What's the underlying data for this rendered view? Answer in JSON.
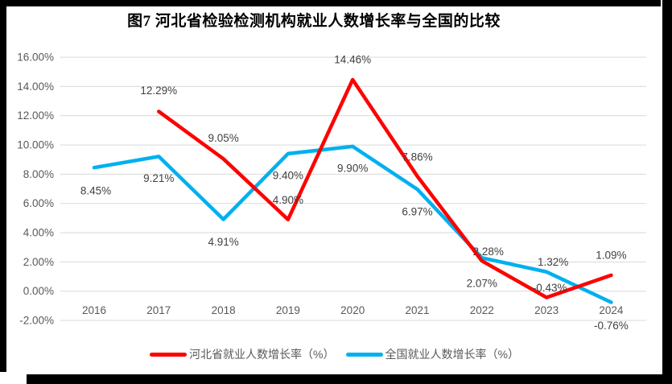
{
  "figure": {
    "title": "图7 河北省检验检测机构就业人数增长率与全国的比较"
  },
  "chart_data": {
    "type": "line",
    "title": "图7 河北省检验检测机构就业人数增长率与全国的比较",
    "categories": [
      "2016",
      "2017",
      "2018",
      "2019",
      "2020",
      "2021",
      "2022",
      "2023",
      "2024"
    ],
    "series": [
      {
        "name": "河北省就业人数增长率（%）",
        "color": "#FF0000",
        "values": [
          null,
          12.29,
          9.05,
          4.9,
          14.46,
          7.86,
          2.07,
          -0.43,
          1.09
        ],
        "labels": [
          "",
          "12.29%",
          "9.05%",
          "4.90%",
          "14.46%",
          "7.86%",
          "2.07%",
          "-0.43%",
          "1.09%"
        ],
        "label_offsets": [
          [
            0,
            0
          ],
          [
            0,
            -26
          ],
          [
            0,
            -26
          ],
          [
            0,
            -24
          ],
          [
            0,
            -25
          ],
          [
            0,
            -24
          ],
          [
            0,
            28
          ],
          [
            4,
            -12
          ],
          [
            0,
            -25
          ]
        ]
      },
      {
        "name": "全国就业人数增长率（%）",
        "color": "#00B0F0",
        "values": [
          8.45,
          9.21,
          4.91,
          9.4,
          9.9,
          6.97,
          2.28,
          1.32,
          -0.76
        ],
        "labels": [
          "8.45%",
          "9.21%",
          "4.91%",
          "9.40%",
          "9.90%",
          "6.97%",
          "2.28%",
          "1.32%",
          "-0.76%"
        ],
        "label_offsets": [
          [
            2,
            29
          ],
          [
            0,
            27
          ],
          [
            0,
            28
          ],
          [
            0,
            27
          ],
          [
            0,
            27
          ],
          [
            0,
            28
          ],
          [
            8,
            -8
          ],
          [
            8,
            -12
          ],
          [
            0,
            29
          ]
        ]
      }
    ],
    "y_ticks": [
      "16.00%",
      "14.00%",
      "12.00%",
      "10.00%",
      "8.00%",
      "6.00%",
      "4.00%",
      "2.00%",
      "0.00%",
      "-2.00%"
    ],
    "y_tick_values": [
      16,
      14,
      12,
      10,
      8,
      6,
      4,
      2,
      0,
      -2
    ],
    "ylim": [
      -2,
      16
    ],
    "xlabel": "",
    "ylabel": "",
    "grid": true,
    "legend_position": "bottom"
  },
  "colors": {
    "grid": "#D9D9D9",
    "axis_text": "#595959",
    "data_label": "#404040",
    "title": "#000000",
    "frame": "#000000"
  }
}
